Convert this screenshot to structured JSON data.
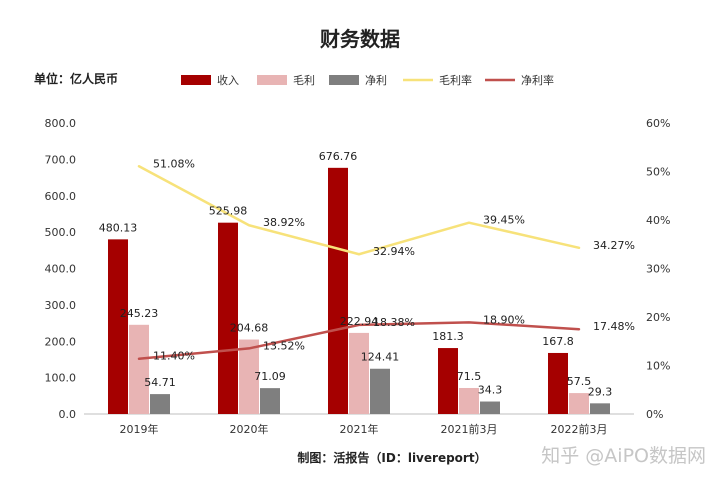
{
  "chart_data": {
    "type": "bar",
    "title": "财务数据",
    "unit_label": "单位：亿人民币",
    "source_label": "制图：活报告（ID：livereport）",
    "watermark": "知乎 @AiPO数据网",
    "categories": [
      "2019年",
      "2020年",
      "2021年",
      "2021前3月",
      "2022前3月"
    ],
    "left_axis": {
      "ylim": [
        0,
        800
      ],
      "ticks": [
        0,
        100,
        200,
        300,
        400,
        500,
        600,
        700,
        800
      ],
      "tick_labels": [
        "0.0",
        "100.0",
        "200.0",
        "300.0",
        "400.0",
        "500.0",
        "600.0",
        "700.0",
        "800.0"
      ]
    },
    "right_axis": {
      "ylim": [
        0,
        60
      ],
      "ticks": [
        0,
        10,
        20,
        30,
        40,
        50,
        60
      ],
      "tick_labels": [
        "0%",
        "10%",
        "20%",
        "30%",
        "40%",
        "50%",
        "60%"
      ]
    },
    "bar_series": [
      {
        "name": "收入",
        "color": "#a50000",
        "values": [
          480.13,
          525.98,
          676.76,
          181.3,
          167.8
        ],
        "labels": [
          "480.13",
          "525.98",
          "676.76",
          "181.3",
          "167.8"
        ]
      },
      {
        "name": "毛利",
        "color": "#e8b4b4",
        "values": [
          245.23,
          204.68,
          222.94,
          71.5,
          57.5
        ],
        "labels": [
          "245.23",
          "204.68",
          "222.94",
          "71.5",
          "57.5"
        ]
      },
      {
        "name": "净利",
        "color": "#7f7f7f",
        "values": [
          54.71,
          71.09,
          124.41,
          34.3,
          29.3
        ],
        "labels": [
          "54.71",
          "71.09",
          "124.41",
          "34.3",
          "29.3"
        ]
      }
    ],
    "line_series": [
      {
        "name": "毛利率",
        "color": "#f7e27a",
        "values": [
          51.08,
          38.92,
          32.94,
          39.45,
          34.27
        ],
        "labels": [
          "51.08%",
          "38.92%",
          "32.94%",
          "39.45%",
          "34.27%"
        ]
      },
      {
        "name": "净利率",
        "color": "#c0504d",
        "values": [
          11.4,
          13.52,
          18.38,
          18.9,
          17.48
        ],
        "labels": [
          "11.40%",
          "13.52%",
          "18.38%",
          "18.90%",
          "17.48%"
        ]
      }
    ],
    "legend_placement": "top",
    "grid": false
  }
}
